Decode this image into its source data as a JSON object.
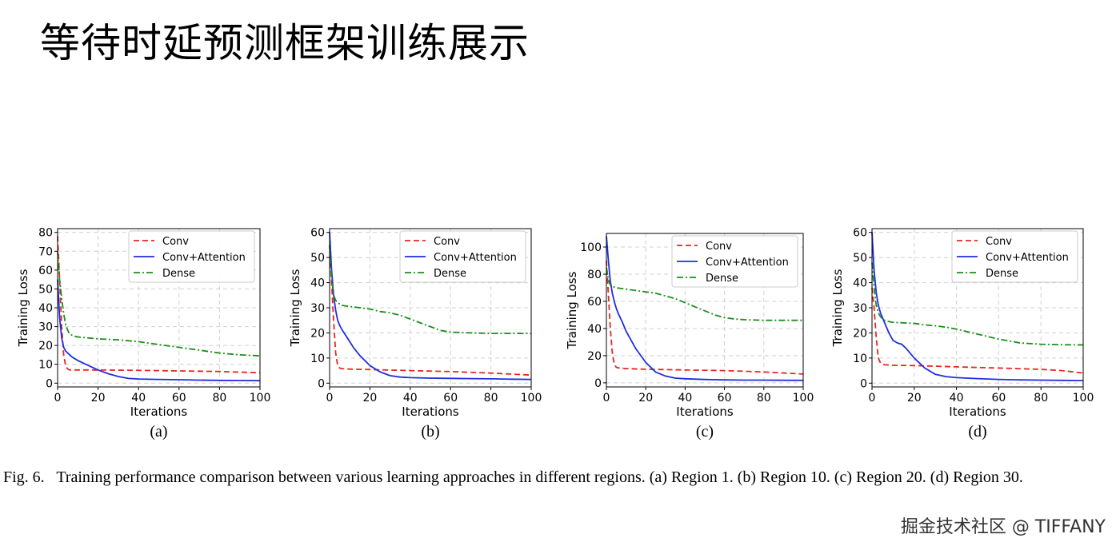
{
  "slide": {
    "title": "等待时延预测框架训练展示"
  },
  "caption": {
    "label": "Fig. 6.",
    "text": "Training performance comparison between various learning approaches in different regions. (a) Region 1. (b) Region 10. (c) Region 20. (d) Region 30."
  },
  "watermark": "掘金技术社区 @ TIFFANY",
  "colors": {
    "conv": "#e8271f",
    "conv_attention": "#1f2ee0",
    "dense": "#1a8f1a"
  },
  "chart_data": [
    {
      "type": "line",
      "panel_label": "(a)",
      "xlabel": "Iterations",
      "ylabel": "Training Loss",
      "xlim": [
        0,
        100
      ],
      "ylim": [
        -2,
        82
      ],
      "xticks": [
        0,
        20,
        40,
        60,
        80,
        100
      ],
      "yticks": [
        0,
        10,
        20,
        30,
        40,
        50,
        60,
        70,
        80
      ],
      "grid": true,
      "legend_position": "top-right",
      "series": [
        {
          "name": "Conv",
          "style": "dashed",
          "x": [
            0,
            1,
            2,
            3,
            4,
            5,
            6,
            8,
            10,
            20,
            40,
            60,
            80,
            100
          ],
          "y": [
            78,
            55,
            30,
            15,
            9,
            7.5,
            7,
            7,
            7,
            7,
            6.8,
            6.5,
            6.2,
            5.5
          ]
        },
        {
          "name": "Conv+Attention",
          "style": "solid",
          "x": [
            0,
            1,
            2,
            3,
            4,
            5,
            7,
            10,
            15,
            20,
            25,
            30,
            35,
            40,
            50,
            60,
            70,
            80,
            90,
            100
          ],
          "y": [
            55,
            35,
            24,
            19,
            17,
            16,
            14,
            12,
            9.5,
            7,
            5,
            3.5,
            2.5,
            2.2,
            2,
            1.8,
            1.6,
            1.5,
            1.4,
            1.3
          ]
        },
        {
          "name": "Dense",
          "style": "dashdot",
          "x": [
            0,
            1,
            2,
            3,
            4,
            5,
            6,
            8,
            10,
            15,
            20,
            30,
            40,
            50,
            60,
            70,
            80,
            90,
            100
          ],
          "y": [
            70,
            55,
            45,
            37,
            31,
            28,
            26,
            25,
            24.5,
            24,
            23.5,
            23,
            22,
            20.5,
            19,
            17.5,
            16,
            15,
            14.5
          ]
        }
      ]
    },
    {
      "type": "line",
      "panel_label": "(b)",
      "xlabel": "Iterations",
      "ylabel": "Training Loss",
      "xlim": [
        0,
        100
      ],
      "ylim": [
        -1.5,
        61.5
      ],
      "xticks": [
        0,
        20,
        40,
        60,
        80,
        100
      ],
      "yticks": [
        0,
        10,
        20,
        30,
        40,
        50,
        60
      ],
      "grid": true,
      "legend_position": "top-right",
      "series": [
        {
          "name": "Conv",
          "style": "dashed",
          "x": [
            0,
            1,
            2,
            3,
            4,
            5,
            6,
            8,
            10,
            20,
            40,
            60,
            80,
            100
          ],
          "y": [
            55,
            40,
            25,
            12,
            7,
            6,
            5.8,
            5.7,
            5.6,
            5.4,
            5,
            4.6,
            4,
            3.2
          ]
        },
        {
          "name": "Conv+Attention",
          "style": "solid",
          "x": [
            0,
            1,
            2,
            3,
            4,
            5,
            6,
            8,
            10,
            12,
            15,
            20,
            25,
            30,
            35,
            40,
            50,
            60,
            70,
            80,
            90,
            100
          ],
          "y": [
            60,
            45,
            35,
            29,
            25,
            23,
            21.5,
            19,
            16.5,
            14,
            11,
            7,
            4.5,
            3,
            2.4,
            2.2,
            2,
            1.9,
            1.8,
            1.7,
            1.6,
            1.5
          ]
        },
        {
          "name": "Dense",
          "style": "dashdot",
          "x": [
            0,
            1,
            2,
            3,
            4,
            5,
            6,
            8,
            10,
            15,
            20,
            25,
            30,
            35,
            40,
            45,
            50,
            55,
            60,
            70,
            80,
            90,
            100
          ],
          "y": [
            55,
            42,
            35,
            33,
            32,
            31.5,
            31,
            30.7,
            30.5,
            30,
            29.5,
            28.5,
            28,
            27,
            25.5,
            24,
            22.5,
            21,
            20.3,
            20,
            19.8,
            19.8,
            19.8
          ]
        }
      ]
    },
    {
      "type": "line",
      "panel_label": "(c)",
      "xlabel": "Iterations",
      "ylabel": "Training Loss",
      "xlim": [
        0,
        100
      ],
      "ylim": [
        -3,
        110
      ],
      "xticks": [
        0,
        20,
        40,
        60,
        80,
        100
      ],
      "yticks": [
        0,
        20,
        40,
        60,
        80,
        100
      ],
      "grid": true,
      "legend_position": "top-right",
      "series": [
        {
          "name": "Conv",
          "style": "dashed",
          "x": [
            0,
            1,
            2,
            3,
            4,
            5,
            6,
            8,
            10,
            20,
            40,
            60,
            80,
            100
          ],
          "y": [
            90,
            65,
            40,
            22,
            14,
            11.5,
            11,
            10.8,
            10.5,
            10,
            9.5,
            9,
            8,
            6.5
          ]
        },
        {
          "name": "Conv+Attention",
          "style": "solid",
          "x": [
            0,
            1,
            2,
            3,
            4,
            5,
            6,
            8,
            10,
            15,
            20,
            25,
            30,
            35,
            40,
            50,
            60,
            70,
            80,
            90,
            100
          ],
          "y": [
            108,
            90,
            75,
            66,
            60,
            55,
            51,
            45,
            38,
            25,
            15,
            8,
            5,
            3.5,
            3,
            2.5,
            2.2,
            2,
            2,
            1.9,
            1.8
          ]
        },
        {
          "name": "Dense",
          "style": "dashdot",
          "x": [
            0,
            1,
            2,
            3,
            4,
            5,
            10,
            15,
            20,
            25,
            30,
            35,
            40,
            45,
            50,
            55,
            60,
            65,
            70,
            80,
            90,
            100
          ],
          "y": [
            85,
            76,
            72,
            71,
            70.5,
            70,
            69,
            68,
            67,
            66,
            64,
            62,
            59,
            56,
            53,
            50,
            48,
            47,
            46.5,
            46,
            46,
            46
          ]
        }
      ]
    },
    {
      "type": "line",
      "panel_label": "(d)",
      "xlabel": "Iterations",
      "ylabel": "Training Loss",
      "xlim": [
        0,
        100
      ],
      "ylim": [
        -1.5,
        61.5
      ],
      "xticks": [
        0,
        20,
        40,
        60,
        80,
        100
      ],
      "yticks": [
        0,
        10,
        20,
        30,
        40,
        50,
        60
      ],
      "grid": true,
      "legend_position": "top-right",
      "series": [
        {
          "name": "Conv",
          "style": "dashed",
          "x": [
            0,
            1,
            2,
            3,
            4,
            5,
            6,
            8,
            10,
            20,
            40,
            60,
            80,
            90,
            100
          ],
          "y": [
            38,
            30,
            18,
            10,
            8,
            7.5,
            7.3,
            7.2,
            7.1,
            7,
            6.5,
            6,
            5.5,
            5,
            4
          ]
        },
        {
          "name": "Conv+Attention",
          "style": "solid",
          "x": [
            0,
            1,
            2,
            3,
            4,
            5,
            6,
            8,
            10,
            12,
            14,
            16,
            18,
            20,
            25,
            30,
            35,
            40,
            50,
            60,
            70,
            80,
            90,
            100
          ],
          "y": [
            60,
            45,
            36,
            31,
            28,
            26,
            24,
            20,
            17,
            16,
            15.5,
            14,
            12,
            10,
            6,
            3.5,
            2.6,
            2.2,
            1.8,
            1.5,
            1.3,
            1.2,
            1.1,
            1
          ]
        },
        {
          "name": "Dense",
          "style": "dashdot",
          "x": [
            0,
            1,
            2,
            3,
            4,
            5,
            6,
            8,
            10,
            15,
            20,
            25,
            30,
            35,
            40,
            45,
            50,
            55,
            60,
            65,
            70,
            80,
            90,
            100
          ],
          "y": [
            48,
            38,
            31,
            28,
            26.5,
            25.5,
            25,
            24.5,
            24.2,
            24,
            23.8,
            23.2,
            22.8,
            22.3,
            21.5,
            20.5,
            19.5,
            18.5,
            17.5,
            16.8,
            16,
            15.5,
            15.3,
            15.2
          ]
        }
      ]
    }
  ]
}
